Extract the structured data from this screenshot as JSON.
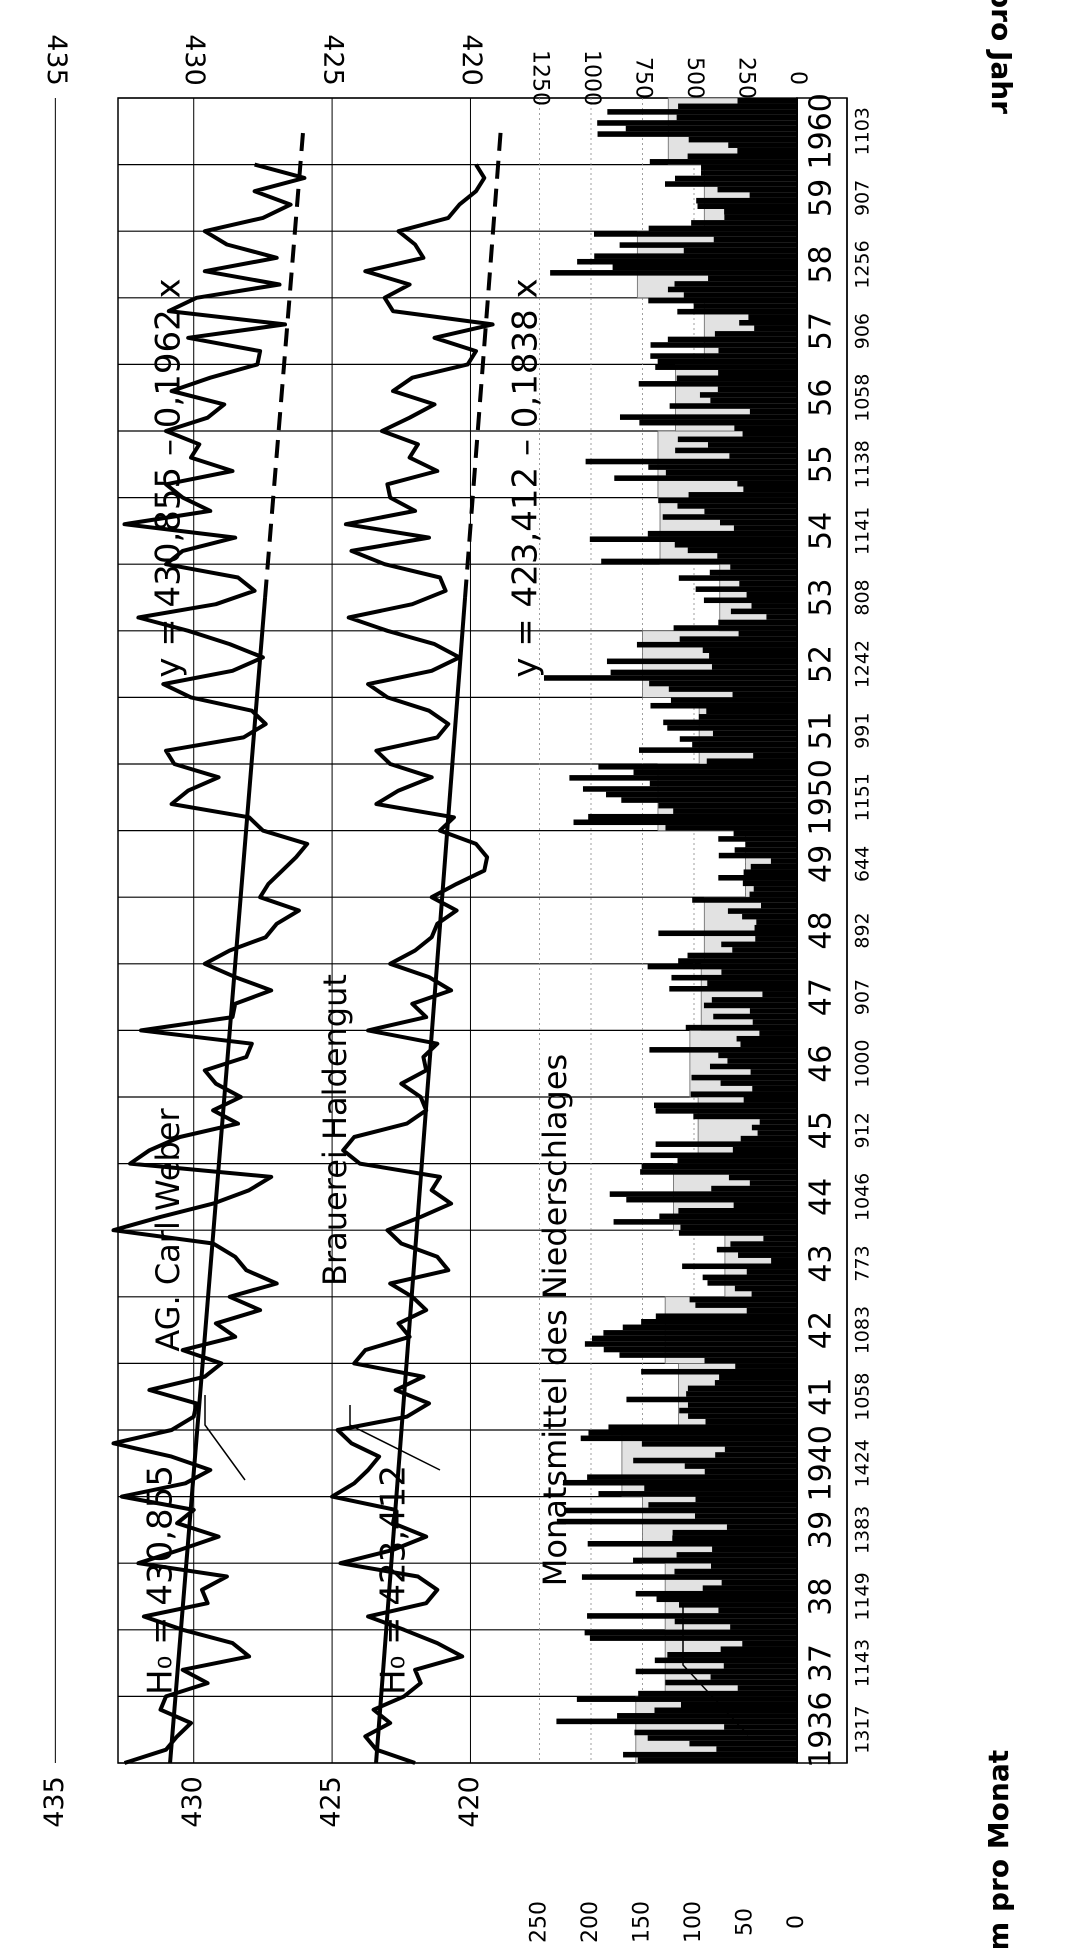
{
  "chart_data": {
    "type": "line",
    "orientation": "rotated-90-cw",
    "x": {
      "categories": [
        "1936",
        "37",
        "38",
        "39",
        "1940",
        "41",
        "42",
        "43",
        "44",
        "45",
        "46",
        "47",
        "48",
        "49",
        "1950",
        "51",
        "52",
        "53",
        "54",
        "55",
        "56",
        "57",
        "58",
        "59",
        "1960"
      ],
      "range": [
        1936,
        1961
      ]
    },
    "groundwater_axis": {
      "ticks": [
        435,
        430,
        425,
        420
      ],
      "range": [
        415.5,
        437
      ]
    },
    "precip_month_axis": {
      "label": "mm pro Monat",
      "ticks": [
        250,
        200,
        150,
        100,
        50,
        0
      ]
    },
    "precip_year_axis": {
      "label": "mm pro Jahr",
      "ticks": [
        1250,
        1000,
        750,
        500,
        250,
        0
      ]
    },
    "annual_totals": [
      "1317",
      "1143",
      "1149",
      "1383",
      "1424",
      "1058",
      "1083",
      "773",
      "1046",
      "912",
      "1000",
      "907",
      "892",
      "644",
      "1151",
      "991",
      "1242",
      "808",
      "1141",
      "1138",
      "1058",
      "906",
      "1256",
      "907",
      "1103"
    ],
    "annotations": {
      "ho_top": "H₀ =  430,855",
      "ho_bottom": "H₀ =  423,412",
      "eq_top": "y  =  430,855  –  0,1962  x",
      "eq_bottom": "y  =  423,412  –  0,1838  x",
      "well_a": "AG. Carl Weber",
      "well_b": "Brauerei Haldengut",
      "precip_label": "Monatsmittel des Niederschlages"
    },
    "series": [
      {
        "name": "AG. Carl Weber",
        "trend": {
          "intercept": 430.855,
          "slope": -0.1962
        },
        "x": [
          1936.0,
          1936.2,
          1936.4,
          1936.6,
          1936.8,
          1937.0,
          1937.2,
          1937.4,
          1937.6,
          1937.8,
          1938.0,
          1938.2,
          1938.4,
          1938.6,
          1938.8,
          1939.0,
          1939.2,
          1939.4,
          1939.6,
          1939.8,
          1940.0,
          1940.2,
          1940.4,
          1940.6,
          1940.8,
          1941.0,
          1941.2,
          1941.4,
          1941.6,
          1941.8,
          1942.0,
          1942.2,
          1942.4,
          1942.6,
          1942.8,
          1943.0,
          1943.2,
          1943.4,
          1943.6,
          1943.8,
          1944.0,
          1944.2,
          1944.4,
          1944.6,
          1944.8,
          1945.0,
          1945.2,
          1945.4,
          1945.6,
          1945.8,
          1946.0,
          1946.2,
          1946.4,
          1946.6,
          1946.8,
          1947.0,
          1947.2,
          1947.4,
          1947.6,
          1947.8,
          1948.0,
          1948.2,
          1948.4,
          1948.6,
          1948.8,
          1949.0,
          1949.2,
          1949.4,
          1949.6,
          1949.8,
          1950.0,
          1950.2,
          1950.4,
          1950.6,
          1950.8,
          1951.0,
          1951.2,
          1951.4,
          1951.6,
          1951.8,
          1952.0,
          1952.2,
          1952.4,
          1952.6,
          1952.8,
          1953.0,
          1953.2,
          1953.4,
          1953.6,
          1953.8,
          1954.0,
          1954.2,
          1954.4,
          1954.6,
          1954.8,
          1955.0,
          1955.2,
          1955.4,
          1955.6,
          1955.8,
          1956.0,
          1956.2,
          1956.4,
          1956.6,
          1956.8,
          1957.0,
          1957.2,
          1957.4,
          1957.6,
          1957.8,
          1958.0,
          1958.2,
          1958.4,
          1958.6,
          1958.8,
          1959.0,
          1959.2,
          1959.4,
          1959.6,
          1959.8,
          1960.0
        ],
        "y": [
          432.5,
          431.0,
          430.6,
          430.1,
          431.2,
          431.0,
          429.5,
          430.4,
          428.0,
          428.6,
          430.4,
          431.8,
          429.5,
          429.7,
          428.8,
          432.0,
          430.5,
          429.1,
          430.6,
          430.0,
          432.6,
          430.3,
          429.4,
          430.8,
          432.9,
          430.8,
          430.0,
          429.9,
          431.6,
          429.6,
          429.0,
          430.4,
          428.5,
          429.2,
          427.6,
          428.7,
          427.0,
          428.1,
          428.5,
          429.3,
          432.9,
          431.2,
          429.3,
          428.0,
          427.2,
          432.3,
          431.6,
          430.5,
          428.4,
          429.3,
          428.3,
          429.2,
          429.6,
          428.1,
          427.9,
          431.9,
          428.6,
          428.5,
          427.2,
          428.5,
          429.6,
          428.7,
          427.4,
          427.0,
          426.2,
          427.6,
          427.3,
          426.8,
          426.3,
          425.9,
          427.5,
          428.0,
          430.8,
          430.2,
          429.1,
          430.7,
          431.0,
          428.2,
          427.4,
          427.9,
          430.1,
          431.1,
          428.6,
          427.5,
          428.7,
          430.2,
          432.0,
          429.2,
          427.8,
          428.4,
          431.0,
          430.4,
          428.5,
          432.5,
          429.4,
          430.4,
          431.0,
          428.6,
          430.1,
          429.8,
          431.0,
          429.5,
          428.9,
          430.8,
          429.4,
          427.7,
          427.6,
          430.2,
          426.7,
          430.9,
          429.9,
          426.9,
          429.6,
          427.0,
          428.8,
          429.6,
          427.5,
          426.5,
          427.8,
          426.0,
          427.8
        ]
      },
      {
        "name": "Brauerei Haldengut",
        "trend": {
          "intercept": 423.412,
          "slope": -0.1838
        },
        "x": [
          1936.0,
          1936.2,
          1936.4,
          1936.6,
          1936.8,
          1937.0,
          1937.2,
          1937.4,
          1937.6,
          1937.8,
          1938.0,
          1938.2,
          1938.4,
          1938.6,
          1938.8,
          1939.0,
          1939.2,
          1939.4,
          1939.6,
          1939.8,
          1940.0,
          1940.2,
          1940.4,
          1940.6,
          1940.8,
          1941.0,
          1941.2,
          1941.4,
          1941.6,
          1941.8,
          1942.0,
          1942.2,
          1942.4,
          1942.6,
          1942.8,
          1943.0,
          1943.2,
          1943.4,
          1943.6,
          1943.8,
          1944.0,
          1944.2,
          1944.4,
          1944.6,
          1944.8,
          1945.0,
          1945.2,
          1945.4,
          1945.6,
          1945.8,
          1946.0,
          1946.2,
          1946.4,
          1946.6,
          1946.8,
          1947.0,
          1947.2,
          1947.4,
          1947.6,
          1947.8,
          1948.0,
          1948.2,
          1948.4,
          1948.6,
          1948.8,
          1949.0,
          1949.2,
          1949.4,
          1949.6,
          1949.8,
          1950.0,
          1950.2,
          1950.4,
          1950.6,
          1950.8,
          1951.0,
          1951.2,
          1951.4,
          1951.6,
          1951.8,
          1952.0,
          1952.2,
          1952.4,
          1952.6,
          1952.8,
          1953.0,
          1953.2,
          1953.4,
          1953.6,
          1953.8,
          1954.0,
          1954.2,
          1954.4,
          1954.6,
          1954.8,
          1955.0,
          1955.2,
          1955.4,
          1955.6,
          1955.8,
          1956.0,
          1956.2,
          1956.4,
          1956.6,
          1956.8,
          1957.0,
          1957.2,
          1957.4,
          1957.6,
          1957.8,
          1958.0,
          1958.2,
          1958.4,
          1958.6,
          1958.8,
          1959.0,
          1959.2,
          1959.4,
          1959.6,
          1959.8,
          1960.0
        ],
        "y": [
          422.0,
          423.4,
          423.8,
          422.9,
          423.5,
          422.4,
          421.8,
          422.0,
          420.3,
          421.2,
          422.4,
          423.7,
          421.6,
          421.2,
          421.9,
          424.7,
          422.8,
          421.6,
          422.8,
          422.7,
          425.0,
          424.2,
          423.7,
          423.3,
          424.3,
          424.8,
          422.3,
          421.5,
          422.7,
          421.7,
          424.2,
          423.8,
          422.2,
          422.6,
          421.6,
          422.1,
          422.9,
          420.8,
          421.2,
          422.5,
          423.0,
          421.8,
          420.7,
          421.4,
          421.1,
          424.0,
          424.6,
          424.2,
          422.3,
          421.6,
          421.8,
          422.5,
          421.6,
          421.7,
          421.2,
          423.7,
          421.6,
          422.1,
          420.7,
          421.5,
          422.9,
          422.0,
          421.4,
          421.2,
          420.5,
          421.4,
          420.5,
          419.5,
          419.4,
          419.8,
          421.1,
          420.6,
          423.4,
          422.6,
          421.4,
          422.9,
          423.4,
          421.2,
          420.8,
          421.5,
          423.0,
          423.7,
          421.4,
          420.4,
          421.3,
          423.0,
          424.4,
          422.1,
          420.9,
          421.1,
          423.1,
          424.3,
          421.5,
          424.5,
          422.0,
          422.9,
          423.0,
          421.2,
          422.2,
          421.9,
          423.2,
          422.2,
          421.3,
          422.8,
          422.1,
          420.1,
          419.8,
          421.3,
          419.2,
          422.8,
          423.1,
          422.2,
          423.8,
          421.7,
          422.0,
          422.6,
          420.8,
          420.4,
          419.8,
          419.5,
          419.8
        ]
      }
    ],
    "annual_means": [
      156.5,
      128,
      128,
      150,
      170,
      115,
      128,
      70,
      120,
      96,
      104,
      93,
      90,
      50,
      135,
      95,
      150,
      75,
      133,
      135,
      118,
      90,
      155,
      90,
      125
    ]
  }
}
